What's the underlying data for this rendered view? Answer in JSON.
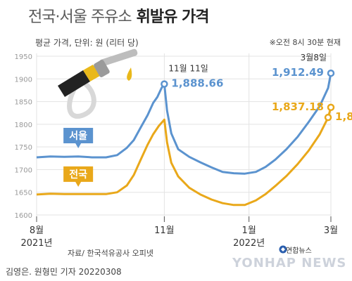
{
  "header": {
    "title_light": "전국·서울 주유소",
    "title_bold": "휘발유 가격",
    "subtitle": "평균 가격, 단위: 원 (리터 당)",
    "note": "※오전 8시 30분 현재"
  },
  "footer": {
    "source": "자료/ 한국석유공사 오피넷",
    "credit": "김영은. 원형민 기자",
    "date": "20220308",
    "logo": "연합뉴스",
    "watermark": "YONHAP NEWS"
  },
  "colors": {
    "seoul": "#5b93cf",
    "national": "#e9a81a",
    "grid": "#e3e3e3",
    "tick": "#999999"
  },
  "chart_data": {
    "type": "line",
    "title": "전국·서울 주유소 휘발유 가격",
    "ylim": [
      1600,
      1950
    ],
    "yticks": [
      1600,
      1650,
      1700,
      1750,
      1800,
      1850,
      1900,
      1950
    ],
    "xticks": [
      {
        "label": "8월",
        "sub": "2021년",
        "t": 0
      },
      {
        "label": "11월",
        "sub": "",
        "t": 92
      },
      {
        "label": "1월",
        "sub": "2022년",
        "t": 153
      },
      {
        "label": "3월",
        "sub": "",
        "t": 212
      }
    ],
    "xlim": [
      0,
      212
    ],
    "series": [
      {
        "name": "서울",
        "color": "#5b93cf",
        "points": [
          [
            0,
            1727
          ],
          [
            10,
            1729
          ],
          [
            20,
            1728
          ],
          [
            30,
            1729
          ],
          [
            40,
            1727
          ],
          [
            50,
            1727
          ],
          [
            58,
            1732
          ],
          [
            65,
            1748
          ],
          [
            70,
            1765
          ],
          [
            75,
            1793
          ],
          [
            80,
            1820
          ],
          [
            84,
            1847
          ],
          [
            87,
            1860
          ],
          [
            90,
            1880
          ],
          [
            92,
            1888.66
          ],
          [
            94,
            1830
          ],
          [
            97,
            1780
          ],
          [
            102,
            1745
          ],
          [
            110,
            1728
          ],
          [
            118,
            1716
          ],
          [
            126,
            1705
          ],
          [
            134,
            1695
          ],
          [
            142,
            1692
          ],
          [
            150,
            1691
          ],
          [
            158,
            1695
          ],
          [
            165,
            1706
          ],
          [
            172,
            1722
          ],
          [
            180,
            1745
          ],
          [
            188,
            1772
          ],
          [
            196,
            1805
          ],
          [
            204,
            1840
          ],
          [
            210,
            1880
          ],
          [
            212,
            1912.49
          ]
        ]
      },
      {
        "name": "전국",
        "color": "#e9a81a",
        "points": [
          [
            0,
            1645
          ],
          [
            10,
            1647
          ],
          [
            20,
            1646
          ],
          [
            30,
            1646
          ],
          [
            40,
            1646
          ],
          [
            50,
            1646
          ],
          [
            58,
            1650
          ],
          [
            65,
            1665
          ],
          [
            70,
            1688
          ],
          [
            75,
            1722
          ],
          [
            80,
            1755
          ],
          [
            84,
            1778
          ],
          [
            88,
            1796
          ],
          [
            92,
            1810.16
          ],
          [
            94,
            1760
          ],
          [
            97,
            1715
          ],
          [
            102,
            1685
          ],
          [
            110,
            1660
          ],
          [
            118,
            1645
          ],
          [
            126,
            1634
          ],
          [
            134,
            1626
          ],
          [
            142,
            1622
          ],
          [
            150,
            1622
          ],
          [
            158,
            1632
          ],
          [
            165,
            1646
          ],
          [
            172,
            1664
          ],
          [
            180,
            1686
          ],
          [
            188,
            1712
          ],
          [
            196,
            1742
          ],
          [
            204,
            1778
          ],
          [
            210,
            1815
          ],
          [
            212,
            1837.18
          ]
        ]
      }
    ],
    "annotations": [
      {
        "series": 0,
        "date_label": "11월 11일",
        "value_label": "1,888.66"
      },
      {
        "series": 1,
        "date_label": "",
        "value_label": "1,810.16"
      },
      {
        "series": 0,
        "date_label": "3월8일",
        "value_label": "1,912.49"
      },
      {
        "series": 1,
        "date_label": "",
        "value_label": "1,837.18"
      }
    ],
    "series_labels": [
      "서울",
      "전국"
    ]
  }
}
